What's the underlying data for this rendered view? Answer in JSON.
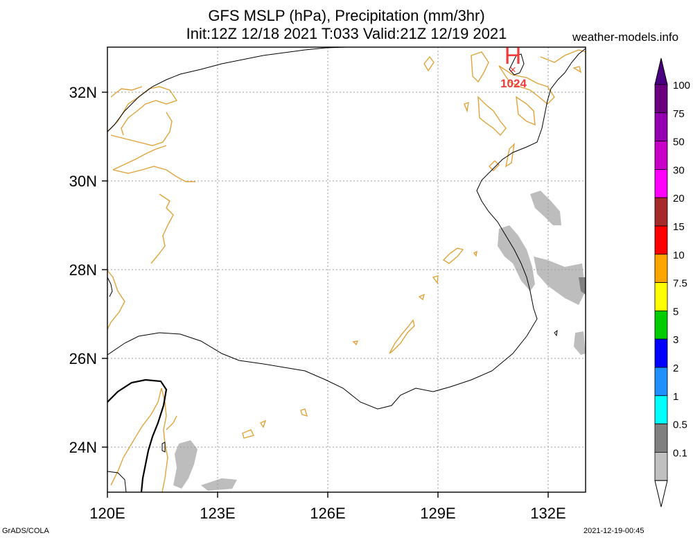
{
  "header": {
    "title_line1": "GFS MSLP (hPa), Precipitation (mm/3hr)",
    "title_line2": "Init:12Z 12/18 2021 T:033 Valid:21Z 12/19 2021",
    "brand": "weather-models.info"
  },
  "footer": {
    "left": "GrADS/COLA",
    "right": "2021-12-19-00:45"
  },
  "map": {
    "lon_labels": [
      "120E",
      "123E",
      "126E",
      "129E",
      "132E"
    ],
    "lat_labels": [
      "32N",
      "30N",
      "28N",
      "26N",
      "24N"
    ],
    "high_marker": {
      "letter": "H",
      "value": "1024",
      "color": "#ee3b3b"
    },
    "colors": {
      "coast": "#e0a33a",
      "isobar": "#000000",
      "precip_light": "#bdbdbd",
      "precip_mid": "#808080"
    }
  },
  "colorbar": {
    "levels": [
      "100",
      "75",
      "50",
      "30",
      "20",
      "15",
      "10",
      "7.5",
      "5",
      "3",
      "2",
      "1",
      "0.5",
      "0.1"
    ],
    "colors": [
      "#6a0080",
      "#9400b0",
      "#c800c8",
      "#ff00ff",
      "#a52a2a",
      "#ff0000",
      "#ffa500",
      "#ffff00",
      "#00cc00",
      "#0000ff",
      "#1e90ff",
      "#00ffff",
      "#808080",
      "#c0c0c0"
    ],
    "top_color": "#4b0082"
  }
}
